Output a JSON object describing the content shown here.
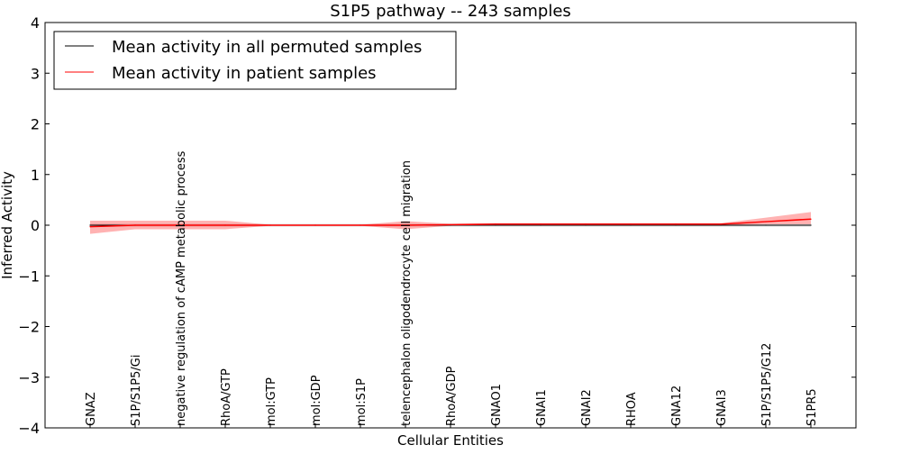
{
  "chart_data": {
    "type": "line",
    "title": "S1P5 pathway -- 243 samples",
    "xlabel": "Cellular Entities",
    "ylabel": "Inferred Activity",
    "ylim": [
      -4,
      4
    ],
    "xlim": [
      -1,
      17
    ],
    "yticks": [
      -4,
      -3,
      -2,
      -1,
      0,
      1,
      2,
      3,
      4
    ],
    "ytick_labels": [
      "−4",
      "−3",
      "−2",
      "−1",
      "0",
      "1",
      "2",
      "3",
      "4"
    ],
    "categories": [
      "GNAZ",
      "S1P/S1P5/Gi",
      "negative regulation of cAMP metabolic process",
      "RhoA/GTP",
      "mol:GTP",
      "mol:GDP",
      "mol:S1P",
      "telencephalon oligodendrocyte cell migration",
      "RhoA/GDP",
      "GNAO1",
      "GNAI1",
      "GNAI2",
      "RHOA",
      "GNA12",
      "GNAI3",
      "S1P/S1P5/G12",
      "S1PR5"
    ],
    "legend_position": "top-left",
    "series": [
      {
        "name": "Mean activity in all permuted samples",
        "color": "#000000",
        "band_color": "#cccccc",
        "values": [
          0,
          0,
          0,
          0,
          0,
          0,
          0,
          0,
          0,
          0,
          0,
          0,
          0,
          0,
          0,
          0,
          0
        ],
        "lower": [
          -0.03,
          -0.03,
          -0.03,
          -0.03,
          -0.03,
          -0.03,
          -0.03,
          -0.03,
          -0.03,
          -0.03,
          -0.03,
          -0.03,
          -0.03,
          -0.03,
          -0.03,
          -0.03,
          -0.03
        ],
        "upper": [
          0.03,
          0.03,
          0.03,
          0.03,
          0.03,
          0.03,
          0.03,
          0.03,
          0.03,
          0.03,
          0.03,
          0.03,
          0.03,
          0.03,
          0.03,
          0.03,
          0.03
        ]
      },
      {
        "name": "Mean activity in patient samples",
        "color": "#ff0000",
        "band_color": "#ff0000",
        "values": [
          -0.03,
          0,
          0,
          0,
          0,
          0,
          0,
          0,
          0.01,
          0.02,
          0.02,
          0.02,
          0.02,
          0.02,
          0.02,
          0.07,
          0.12
        ],
        "lower": [
          -0.17,
          -0.08,
          -0.08,
          -0.08,
          -0.01,
          -0.01,
          -0.01,
          -0.08,
          -0.01,
          0,
          0,
          0,
          0,
          0,
          0,
          0.02,
          0.02
        ],
        "upper": [
          0.09,
          0.09,
          0.09,
          0.09,
          0.01,
          0.01,
          0.01,
          0.08,
          0.03,
          0.04,
          0.04,
          0.04,
          0.04,
          0.04,
          0.04,
          0.15,
          0.26
        ]
      }
    ]
  }
}
